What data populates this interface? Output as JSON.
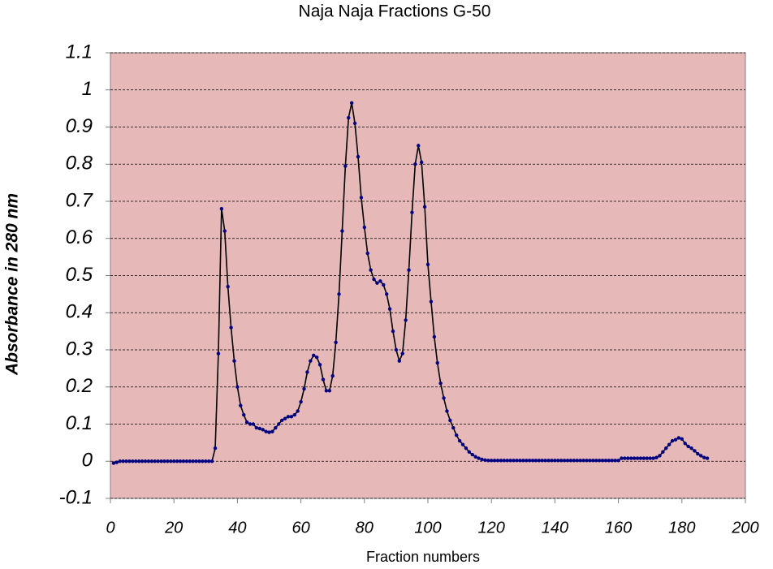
{
  "chart_data": {
    "type": "line",
    "title": "Naja Naja Fractions G-50",
    "x_label": "Fraction numbers",
    "y_label": "Absorbance in 280 nm",
    "x": [
      1,
      2,
      3,
      4,
      5,
      6,
      7,
      8,
      9,
      10,
      11,
      12,
      13,
      14,
      15,
      16,
      17,
      18,
      19,
      20,
      21,
      22,
      23,
      24,
      25,
      26,
      27,
      28,
      29,
      30,
      31,
      32,
      33,
      34,
      35,
      36,
      37,
      38,
      39,
      40,
      41,
      42,
      43,
      44,
      45,
      46,
      47,
      48,
      49,
      50,
      51,
      52,
      53,
      54,
      55,
      56,
      57,
      58,
      59,
      60,
      61,
      62,
      63,
      64,
      65,
      66,
      67,
      68,
      69,
      70,
      71,
      72,
      73,
      74,
      75,
      76,
      77,
      78,
      79,
      80,
      81,
      82,
      83,
      84,
      85,
      86,
      87,
      88,
      89,
      90,
      91,
      92,
      93,
      94,
      95,
      96,
      97,
      98,
      99,
      100,
      101,
      102,
      103,
      104,
      105,
      106,
      107,
      108,
      109,
      110,
      111,
      112,
      113,
      114,
      115,
      116,
      117,
      118,
      119,
      120,
      121,
      122,
      123,
      124,
      125,
      126,
      127,
      128,
      129,
      130,
      131,
      132,
      133,
      134,
      135,
      136,
      137,
      138,
      139,
      140,
      141,
      142,
      143,
      144,
      145,
      146,
      147,
      148,
      149,
      150,
      151,
      152,
      153,
      154,
      155,
      156,
      157,
      158,
      159,
      160,
      161,
      162,
      163,
      164,
      165,
      166,
      167,
      168,
      169,
      170,
      171,
      172,
      173,
      174,
      175,
      176,
      177,
      178,
      179,
      180,
      181,
      182,
      183,
      184,
      185,
      186,
      187,
      188
    ],
    "series": [
      {
        "color": "#000080",
        "line_color": "#000000",
        "values": [
          -0.005,
          -0.003,
          0,
          0,
          0,
          0,
          0,
          0,
          0,
          0,
          0,
          0,
          0,
          0,
          0,
          0,
          0,
          0,
          0,
          0,
          0,
          0,
          0,
          0,
          0,
          0,
          0,
          0,
          0,
          0,
          0,
          0,
          0.035,
          0.29,
          0.68,
          0.62,
          0.47,
          0.36,
          0.27,
          0.2,
          0.15,
          0.125,
          0.105,
          0.1,
          0.1,
          0.09,
          0.088,
          0.085,
          0.08,
          0.078,
          0.08,
          0.09,
          0.1,
          0.11,
          0.115,
          0.12,
          0.12,
          0.125,
          0.135,
          0.16,
          0.195,
          0.24,
          0.27,
          0.285,
          0.28,
          0.26,
          0.22,
          0.19,
          0.19,
          0.23,
          0.32,
          0.45,
          0.62,
          0.795,
          0.925,
          0.965,
          0.91,
          0.82,
          0.71,
          0.63,
          0.56,
          0.515,
          0.49,
          0.48,
          0.485,
          0.475,
          0.45,
          0.41,
          0.35,
          0.3,
          0.27,
          0.29,
          0.38,
          0.515,
          0.67,
          0.8,
          0.85,
          0.805,
          0.685,
          0.53,
          0.43,
          0.335,
          0.265,
          0.21,
          0.17,
          0.135,
          0.11,
          0.09,
          0.07,
          0.055,
          0.045,
          0.035,
          0.025,
          0.018,
          0.012,
          0.008,
          0.005,
          0.003,
          0.002,
          0.002,
          0.002,
          0.002,
          0.002,
          0.002,
          0.002,
          0.002,
          0.002,
          0.002,
          0.002,
          0.002,
          0.002,
          0.002,
          0.002,
          0.002,
          0.002,
          0.002,
          0.002,
          0.002,
          0.002,
          0.002,
          0.002,
          0.002,
          0.002,
          0.002,
          0.002,
          0.002,
          0.002,
          0.002,
          0.002,
          0.002,
          0.002,
          0.002,
          0.002,
          0.002,
          0.002,
          0.002,
          0.002,
          0.002,
          0.002,
          0.002,
          0.008,
          0.008,
          0.008,
          0.008,
          0.008,
          0.008,
          0.008,
          0.008,
          0.008,
          0.008,
          0.008,
          0.01,
          0.015,
          0.025,
          0.035,
          0.045,
          0.055,
          0.058,
          0.063,
          0.06,
          0.048,
          0.04,
          0.035,
          0.028,
          0.02,
          0.015,
          0.01,
          0.008
        ]
      }
    ],
    "xlim": [
      0,
      200
    ],
    "xticks": [
      0,
      20,
      40,
      60,
      80,
      100,
      120,
      140,
      160,
      180,
      200
    ],
    "ylim": [
      -0.1,
      1.1
    ],
    "yticks": [
      -0.1,
      0,
      0.1,
      0.2,
      0.3,
      0.4,
      0.5,
      0.6,
      0.7,
      0.8,
      0.9,
      1,
      1.1
    ],
    "grid": true,
    "plot_background": "#e6b9b8"
  }
}
